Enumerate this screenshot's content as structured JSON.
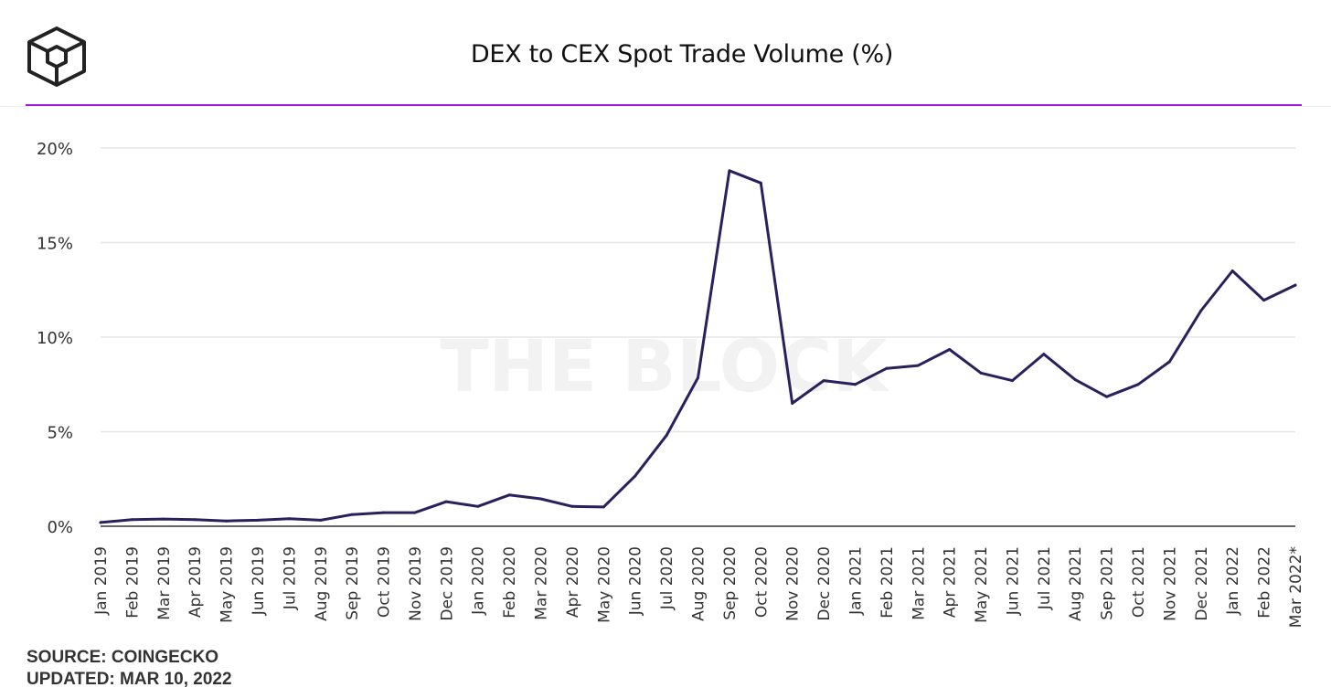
{
  "brand": {
    "logo_icon": "the-block-cube-logo-icon",
    "watermark": "THE BLOCK"
  },
  "colors": {
    "accent": "#a21de0",
    "line": "#2b1f5c",
    "grid": "#e6e6e6",
    "axis": "#333333",
    "watermark": "#f2f2f2"
  },
  "footer": {
    "source": "SOURCE: COINGECKO",
    "updated": "UPDATED: MAR 10, 2022"
  },
  "chart_data": {
    "type": "line",
    "title": "DEX to CEX Spot Trade Volume (%)",
    "xlabel": "",
    "ylabel": "",
    "ylim": [
      0,
      20
    ],
    "yticks": [
      0,
      5,
      10,
      15,
      20
    ],
    "ytick_labels": [
      "0%",
      "5%",
      "10%",
      "15%",
      "20%"
    ],
    "grid": true,
    "legend": "none",
    "categories": [
      "Jan 2019",
      "Feb 2019",
      "Mar 2019",
      "Apr 2019",
      "May 2019",
      "Jun 2019",
      "Jul 2019",
      "Aug 2019",
      "Sep 2019",
      "Oct 2019",
      "Nov 2019",
      "Dec 2019",
      "Jan 2020",
      "Feb 2020",
      "Mar 2020",
      "Apr 2020",
      "May 2020",
      "Jun 2020",
      "Jul 2020",
      "Aug 2020",
      "Sep 2020",
      "Oct 2020",
      "Nov 2020",
      "Dec 2020",
      "Jan 2021",
      "Feb 2021",
      "Mar 2021",
      "Apr 2021",
      "May 2021",
      "Jun 2021",
      "Jul 2021",
      "Aug 2021",
      "Sep 2021",
      "Oct 2021",
      "Nov 2021",
      "Dec 2021",
      "Jan 2022",
      "Feb 2022",
      "Mar 2022*"
    ],
    "series": [
      {
        "values": [
          0.2,
          0.35,
          0.38,
          0.35,
          0.28,
          0.32,
          0.4,
          0.32,
          0.62,
          0.72,
          0.72,
          1.3,
          1.05,
          1.65,
          1.45,
          1.05,
          1.02,
          2.65,
          4.8,
          7.85,
          18.8,
          18.15,
          6.5,
          7.7,
          7.5,
          8.35,
          8.5,
          9.35,
          8.1,
          7.7,
          9.1,
          7.75,
          6.85,
          7.5,
          8.7,
          11.4,
          13.5,
          11.95,
          12.75
        ]
      }
    ]
  }
}
